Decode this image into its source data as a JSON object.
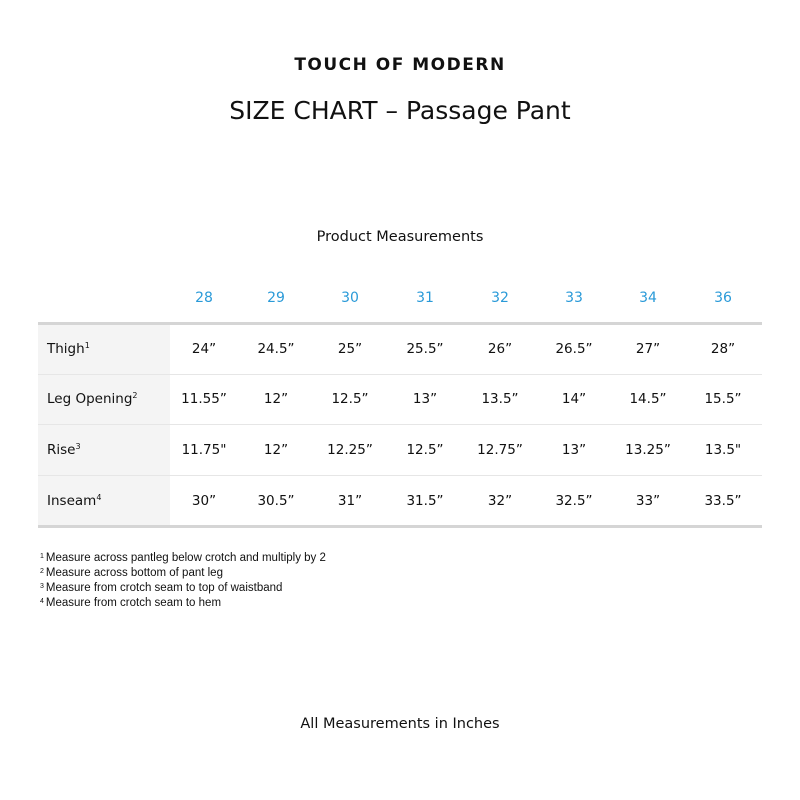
{
  "brand": "TOUCH OF MODERN",
  "title": "SIZE CHART – Passage Pant",
  "subtitle": "Product Measurements",
  "table": {
    "header_color": "#2a9ad8",
    "sizes": [
      "28",
      "29",
      "30",
      "31",
      "32",
      "33",
      "34",
      "36"
    ],
    "rows": [
      {
        "label": "Thigh",
        "note": "1",
        "values": [
          "24”",
          "24.5”",
          "25”",
          "25.5”",
          "26”",
          "26.5”",
          "27”",
          "28”"
        ]
      },
      {
        "label": "Leg Opening",
        "note": "2",
        "values": [
          "11.55”",
          "12”",
          "12.5”",
          "13”",
          "13.5”",
          "14”",
          "14.5”",
          "15.5”"
        ]
      },
      {
        "label": "Rise",
        "note": "3",
        "values": [
          "11.75\"",
          "12”",
          "12.25”",
          "12.5”",
          "12.75”",
          "13”",
          "13.25”",
          "13.5\""
        ]
      },
      {
        "label": "Inseam",
        "note": "4",
        "values": [
          "30”",
          "30.5”",
          "31”",
          "31.5”",
          "32”",
          "32.5”",
          "33”",
          "33.5”"
        ]
      }
    ]
  },
  "notes": [
    {
      "mark": "1",
      "text": "Measure across pantleg below crotch and multiply by 2"
    },
    {
      "mark": "2",
      "text": "Measure across bottom of pant leg"
    },
    {
      "mark": "3",
      "text": "Measure from crotch seam to top of waistband"
    },
    {
      "mark": "4",
      "text": "Measure from crotch seam to hem"
    }
  ],
  "footer": "All Measurements in Inches"
}
